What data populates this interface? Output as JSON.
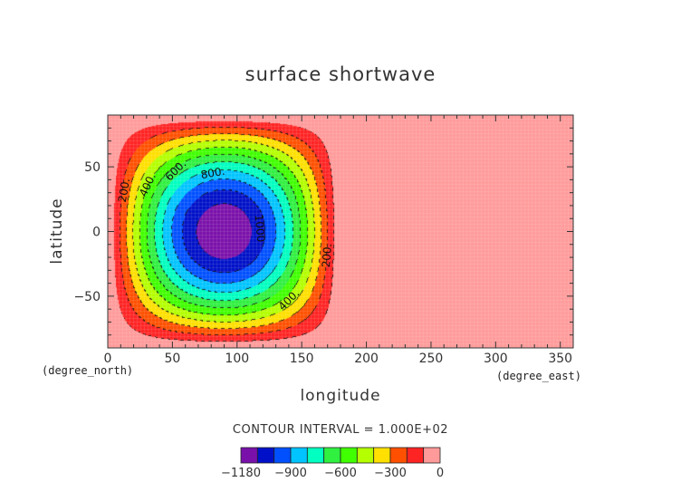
{
  "chart_data": {
    "type": "heatmap",
    "subtype": "filled-contour",
    "title": "surface shortwave",
    "xlabel": "longitude",
    "ylabel": "latitude",
    "xunit": "(degree_east)",
    "yunit": "(degree_north)",
    "xlim": [
      0,
      360
    ],
    "ylim": [
      -90,
      90
    ],
    "xticks": [
      "0",
      "50",
      "100",
      "150",
      "200",
      "250",
      "300",
      "350"
    ],
    "xtick_values": [
      0,
      50,
      100,
      150,
      200,
      250,
      300,
      350
    ],
    "yticks": [
      "50",
      "0",
      "−50"
    ],
    "ytick_values": [
      50,
      0,
      -50
    ],
    "field": {
      "minimum": -1180,
      "center_lon": 90,
      "center_lat": 0,
      "lon_range": [
        0,
        180
      ],
      "outside_value": 0
    },
    "contour_interval_text": "CONTOUR INTERVAL = 1.000E+02",
    "contour_labels": [
      "200.",
      "400.",
      "600.",
      "800.",
      "1000",
      "200.",
      "400."
    ],
    "levels": [
      -1180,
      -1100,
      -1000,
      -900,
      -800,
      -700,
      -600,
      -500,
      -400,
      -300,
      -200,
      -100,
      0
    ],
    "colors": [
      "#7a10aa",
      "#0010c8",
      "#0050ff",
      "#00c4ff",
      "#00ffc0",
      "#30f040",
      "#40ff00",
      "#b4ff00",
      "#ffe000",
      "#ff5000",
      "#ff2424",
      "#ff9a9a"
    ],
    "colorbar_labels": [
      "−1180",
      "−900",
      "−600",
      "−300",
      "0"
    ],
    "colorbar_label_values": [
      -1180,
      -900,
      -600,
      -300,
      0
    ],
    "legend_placement": "bottom"
  }
}
